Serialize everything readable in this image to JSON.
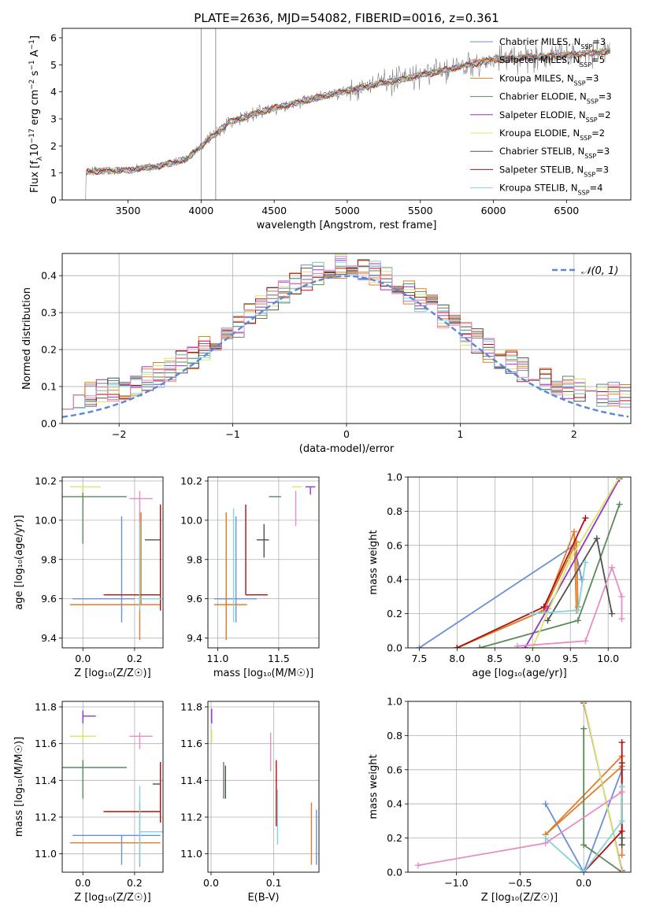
{
  "colors": {
    "Chabrier MILES": "#6a8fd8",
    "Salpeter MILES": "#e87a2a",
    "Kroupa MILES": "#d9822b",
    "Chabrier ELODIE": "#5a8a5a",
    "Salpeter ELODIE": "#9932cc",
    "Kroupa ELODIE": "#d6e86a",
    "Chabrier STELIB": "#505050",
    "Salpeter STELIB": "#b01010",
    "Kroupa STELIB": "#80d4dc",
    "pink": "#e88cc4",
    "gaussian": "#5b87d6",
    "grid": "#b0b0b0"
  },
  "chart_data": [
    {
      "id": "spectrum",
      "type": "line",
      "title": "PLATE=2636, MJD=54082, FIBERID=0016, z=0.361",
      "xlabel": "wavelength [Angstrom, rest frame]",
      "ylabel": "Flux [f",
      "ylabel_parts": [
        "Flux [f",
        "λ",
        "10",
        "−17",
        " erg cm",
        "−2",
        " s",
        "−1",
        " A",
        "−1",
        "]"
      ],
      "xlim": [
        3050,
        6940
      ],
      "ylim": [
        0,
        6.35
      ],
      "xticks": [
        3500,
        4000,
        4500,
        5000,
        5500,
        6000,
        6500
      ],
      "yticks": [
        0,
        1,
        2,
        3,
        4,
        5,
        6
      ],
      "legend_position": "top-right",
      "series": [
        {
          "name": "Chabrier MILES",
          "sub": "SSP",
          "n": "=3"
        },
        {
          "name": "Salpeter MILES",
          "sub": "SSP",
          "n": "=5"
        },
        {
          "name": "Kroupa MILES",
          "sub": "SSP",
          "n": "=3"
        },
        {
          "name": "Chabrier ELODIE",
          "sub": "SSP",
          "n": "=3"
        },
        {
          "name": "Salpeter ELODIE",
          "sub": "SSP",
          "n": "=2"
        },
        {
          "name": "Kroupa ELODIE",
          "sub": "SSP",
          "n": "=2"
        },
        {
          "name": "Chabrier STELIB",
          "sub": "SSP",
          "n": "=3"
        },
        {
          "name": "Salpeter STELIB",
          "sub": "SSP",
          "n": "=3"
        },
        {
          "name": "Kroupa STELIB",
          "sub": "SSP",
          "n": "=4"
        }
      ],
      "continuum": [
        [
          3210,
          1.05
        ],
        [
          3500,
          1.1
        ],
        [
          3700,
          1.25
        ],
        [
          3900,
          1.5
        ],
        [
          4000,
          2.0
        ],
        [
          4200,
          2.9
        ],
        [
          4500,
          3.4
        ],
        [
          5000,
          4.05
        ],
        [
          5500,
          4.6
        ],
        [
          6000,
          5.2
        ],
        [
          6500,
          5.35
        ],
        [
          6800,
          5.5
        ]
      ]
    },
    {
      "id": "residuals",
      "type": "histogram",
      "xlabel": "(data-model)/error",
      "ylabel": "Normed distribution",
      "xlim": [
        -2.5,
        2.5
      ],
      "ylim": [
        0,
        0.46
      ],
      "xticks": [
        -2,
        -1,
        0,
        1,
        2
      ],
      "yticks": [
        0.0,
        0.1,
        0.2,
        0.3,
        0.4
      ],
      "legend": "𝒩(0, 1)",
      "legend_position": "top-right",
      "bin_width": 0.1
    },
    {
      "id": "age_vs_Z",
      "type": "errorbar",
      "xlabel": "Z [log₁₀(Z/Z☉)]",
      "ylabel": "age  [log₁₀(age/yr)]",
      "xlim": [
        -0.08,
        0.31
      ],
      "ylim": [
        9.35,
        10.22
      ],
      "xticks": [
        0.0,
        0.2
      ],
      "yticks": [
        9.4,
        9.6,
        9.8,
        10.0,
        10.2
      ],
      "points": [
        {
          "series": "Chabrier MILES",
          "x": 0.15,
          "y": 9.6,
          "xerr": [
            0.19,
            0.05
          ],
          "yerr": [
            0.12,
            0.42
          ]
        },
        {
          "series": "Salpeter MILES",
          "x": 0.22,
          "y": 9.57,
          "xerr": [
            0.27,
            0.08
          ],
          "yerr": [
            0.18,
            0.47
          ]
        },
        {
          "series": "Kroupa MILES",
          "x": 0.225,
          "y": 9.57,
          "xerr": [
            0.0,
            0.0
          ],
          "yerr": [
            0.0,
            0.47
          ]
        },
        {
          "series": "Chabrier ELODIE",
          "x": 0.0,
          "y": 10.12,
          "xerr": [
            0.12,
            0.17
          ],
          "yerr": [
            0.24,
            0.04
          ]
        },
        {
          "series": "Salpeter ELODIE",
          "x": 0.0,
          "y": 10.17,
          "xerr": [
            0.0,
            0.0
          ],
          "yerr": [
            0.02,
            0.01
          ]
        },
        {
          "series": "Kroupa ELODIE",
          "x": 0.0,
          "y": 10.17,
          "xerr": [
            0.05,
            0.07
          ],
          "yerr": [
            0.03,
            0.01
          ]
        },
        {
          "series": "Chabrier STELIB",
          "x": 0.27,
          "y": 9.9,
          "xerr": [
            0.03,
            0.03
          ],
          "yerr": [
            0.0,
            0.0
          ]
        },
        {
          "series": "Salpeter STELIB",
          "x": 0.3,
          "y": 9.62,
          "xerr": [
            0.22,
            0.0
          ],
          "yerr": [
            0.08,
            0.46
          ]
        },
        {
          "series": "Kroupa STELIB",
          "x": 0.22,
          "y": 9.6,
          "xerr": [
            0.0,
            0.09
          ],
          "yerr": [
            0.06,
            0.45
          ]
        },
        {
          "series": "pink",
          "x": 0.22,
          "y": 10.11,
          "xerr": [
            0.04,
            0.05
          ],
          "yerr": [
            0.12,
            0.04
          ]
        }
      ]
    },
    {
      "id": "age_vs_mass",
      "type": "errorbar",
      "xlabel": "mass [log₁₀(M/M☉)]",
      "xlim": [
        10.92,
        11.83
      ],
      "ylim": [
        9.35,
        10.22
      ],
      "xticks": [
        11.0,
        11.5
      ],
      "yticks": [
        9.4,
        9.6,
        9.8,
        10.0,
        10.2
      ],
      "points": [
        {
          "series": "Chabrier MILES",
          "x": 11.15,
          "y": 9.6,
          "xerr": [
            0.18,
            0.17
          ],
          "yerr": [
            0.12,
            0.42
          ]
        },
        {
          "series": "Salpeter MILES",
          "x": 11.07,
          "y": 9.57,
          "xerr": [
            0.1,
            0.17
          ],
          "yerr": [
            0.18,
            0.47
          ]
        },
        {
          "series": "Kroupa MILES",
          "x": 11.07,
          "y": 9.57,
          "xerr": [
            0.0,
            0.0
          ],
          "yerr": [
            0.18,
            0.47
          ]
        },
        {
          "series": "Chabrier ELODIE",
          "x": 11.47,
          "y": 10.12,
          "xerr": [
            0.05,
            0.05
          ],
          "yerr": [
            0.0,
            0.0
          ]
        },
        {
          "series": "Salpeter ELODIE",
          "x": 11.76,
          "y": 10.17,
          "xerr": [
            0.04,
            0.04
          ],
          "yerr": [
            0.04,
            0.0
          ]
        },
        {
          "series": "Kroupa ELODIE",
          "x": 11.65,
          "y": 10.17,
          "xerr": [
            0.04,
            0.04
          ],
          "yerr": [
            0.0,
            0.0
          ]
        },
        {
          "series": "Chabrier STELIB",
          "x": 11.38,
          "y": 9.9,
          "xerr": [
            0.06,
            0.04
          ],
          "yerr": [
            0.09,
            0.08
          ]
        },
        {
          "series": "Salpeter STELIB",
          "x": 11.23,
          "y": 9.62,
          "xerr": [
            0.0,
            0.18
          ],
          "yerr": [
            0.0,
            0.46
          ]
        },
        {
          "series": "Kroupa STELIB",
          "x": 11.13,
          "y": 9.6,
          "xerr": [
            0.0,
            0.0
          ],
          "yerr": [
            0.12,
            0.46
          ]
        },
        {
          "series": "pink",
          "x": 11.64,
          "y": 10.11,
          "xerr": [
            0.0,
            0.0
          ],
          "yerr": [
            0.14,
            0.04
          ]
        }
      ]
    },
    {
      "id": "weight_vs_age",
      "type": "line",
      "xlabel": "age  [log₁₀(age/yr)]",
      "ylabel": "mass weight",
      "xlim": [
        7.35,
        10.3
      ],
      "ylim": [
        0,
        1
      ],
      "xticks": [
        7.5,
        8.0,
        8.5,
        9.0,
        9.5,
        10.0
      ],
      "yticks": [
        0.0,
        0.2,
        0.4,
        0.6,
        0.8,
        1.0
      ],
      "series": [
        {
          "name": "Chabrier MILES",
          "x": [
            7.5,
            9.55,
            9.65
          ],
          "y": [
            0.0,
            0.6,
            0.4
          ]
        },
        {
          "name": "Salpeter MILES",
          "x": [
            8.0,
            9.15,
            9.55,
            9.58
          ],
          "y": [
            0.0,
            0.22,
            0.68,
            0.22
          ]
        },
        {
          "name": "Kroupa MILES",
          "x": [
            8.0,
            9.15,
            9.58,
            9.6
          ],
          "y": [
            0.0,
            0.22,
            0.62,
            0.24
          ]
        },
        {
          "name": "Chabrier ELODIE",
          "x": [
            8.3,
            9.6,
            10.15
          ],
          "y": [
            0.0,
            0.16,
            0.84
          ]
        },
        {
          "name": "Salpeter ELODIE",
          "x": [
            8.9,
            9.2,
            10.15
          ],
          "y": [
            0.0,
            0.23,
            0.99
          ]
        },
        {
          "name": "Kroupa ELODIE",
          "x": [
            9.0,
            9.5,
            10.15
          ],
          "y": [
            0.0,
            0.52,
            1.0
          ]
        },
        {
          "name": "Chabrier STELIB",
          "x": [
            9.2,
            9.85,
            10.05
          ],
          "y": [
            0.16,
            0.64,
            0.2
          ]
        },
        {
          "name": "Salpeter STELIB",
          "x": [
            8.0,
            9.15,
            9.7
          ],
          "y": [
            0.0,
            0.24,
            0.76
          ]
        },
        {
          "name": "Kroupa STELIB",
          "x": [
            9.0,
            9.6,
            9.7
          ],
          "y": [
            0.2,
            0.22,
            0.5
          ]
        },
        {
          "name": "pink",
          "x": [
            8.8,
            9.7,
            10.05,
            10.18,
            10.18
          ],
          "y": [
            0.01,
            0.04,
            0.47,
            0.3,
            0.17
          ]
        }
      ]
    },
    {
      "id": "mass_vs_Z",
      "type": "errorbar",
      "xlabel": "Z [log₁₀(Z/Z☉)]",
      "ylabel": "mass [log₁₀(M/M☉)]",
      "xlim": [
        -0.08,
        0.31
      ],
      "ylim": [
        10.9,
        11.83
      ],
      "xticks": [
        0.0,
        0.2
      ],
      "yticks": [
        11.0,
        11.2,
        11.4,
        11.6,
        11.8
      ],
      "points": [
        {
          "series": "Chabrier MILES",
          "x": 0.15,
          "y": 11.1,
          "xerr": [
            0.19,
            0.15
          ],
          "yerr": [
            0.16,
            0.0
          ]
        },
        {
          "series": "Salpeter MILES",
          "x": 0.22,
          "y": 11.06,
          "xerr": [
            0.27,
            0.08
          ],
          "yerr": [
            0.13,
            0.22
          ]
        },
        {
          "series": "Kroupa MILES",
          "x": 0.225,
          "y": 11.06,
          "xerr": [
            0.0,
            0.0
          ],
          "yerr": [
            0.0,
            0.0
          ]
        },
        {
          "series": "Chabrier ELODIE",
          "x": 0.0,
          "y": 11.47,
          "xerr": [
            0.12,
            0.17
          ],
          "yerr": [
            0.17,
            0.04
          ]
        },
        {
          "series": "Salpeter ELODIE",
          "x": 0.0,
          "y": 11.75,
          "xerr": [
            0.0,
            0.05
          ],
          "yerr": [
            0.04,
            0.03
          ]
        },
        {
          "series": "Kroupa ELODIE",
          "x": 0.0,
          "y": 11.64,
          "xerr": [
            0.05,
            0.05
          ],
          "yerr": [
            0.03,
            0.03
          ]
        },
        {
          "series": "Chabrier STELIB",
          "x": 0.3,
          "y": 11.38,
          "xerr": [
            0.03,
            0.0
          ],
          "yerr": [
            0.0,
            0.0
          ]
        },
        {
          "series": "Salpeter STELIB",
          "x": 0.3,
          "y": 11.23,
          "xerr": [
            0.22,
            0.0
          ],
          "yerr": [
            0.06,
            0.27
          ]
        },
        {
          "series": "Kroupa STELIB",
          "x": 0.22,
          "y": 11.12,
          "xerr": [
            0.0,
            0.09
          ],
          "yerr": [
            0.18,
            0.25
          ]
        },
        {
          "series": "pink",
          "x": 0.22,
          "y": 11.64,
          "xerr": [
            0.04,
            0.05
          ],
          "yerr": [
            0.07,
            0.02
          ]
        }
      ]
    },
    {
      "id": "mass_vs_ebv",
      "type": "errorbar",
      "xlabel": "E(B-V)",
      "xlim": [
        -0.005,
        0.172
      ],
      "ylim": [
        10.9,
        11.83
      ],
      "xticks": [
        0.0,
        0.1
      ],
      "yticks": [
        11.0,
        11.2,
        11.4,
        11.6,
        11.8
      ],
      "points": [
        {
          "series": "Chabrier MILES",
          "x": 0.168,
          "y": 11.1,
          "yerr": [
            0.16,
            0.14
          ]
        },
        {
          "series": "Salpeter MILES",
          "x": 0.16,
          "y": 11.1,
          "yerr": [
            0.16,
            0.18
          ]
        },
        {
          "series": "Chabrier ELODIE",
          "x": 0.02,
          "y": 11.4,
          "yerr": [
            0.1,
            0.1
          ]
        },
        {
          "series": "Salpeter ELODIE",
          "x": 0.001,
          "y": 11.75,
          "yerr": [
            0.04,
            0.04
          ]
        },
        {
          "series": "Kroupa ELODIE",
          "x": 0.001,
          "y": 11.64,
          "yerr": [
            0.04,
            0.04
          ]
        },
        {
          "series": "Chabrier STELIB",
          "x": 0.023,
          "y": 11.39,
          "yerr": [
            0.09,
            0.09
          ]
        },
        {
          "series": "Salpeter STELIB",
          "x": 0.104,
          "y": 11.35,
          "yerr": [
            0.2,
            0.16
          ]
        },
        {
          "series": "Kroupa STELIB",
          "x": 0.106,
          "y": 11.2,
          "yerr": [
            0.15,
            0.15
          ]
        },
        {
          "series": "pink",
          "x": 0.095,
          "y": 11.55,
          "yerr": [
            0.1,
            0.11
          ]
        }
      ]
    },
    {
      "id": "weight_vs_Z",
      "type": "line",
      "xlabel": "Z [log₁₀(Z/Z☉)]",
      "ylabel": "mass weight",
      "xlim": [
        -1.38,
        0.37
      ],
      "ylim": [
        0,
        1
      ],
      "xticks": [
        -1.0,
        -0.5,
        0.0
      ],
      "yticks": [
        0.0,
        0.2,
        0.4,
        0.6,
        0.8,
        1.0
      ],
      "series": [
        {
          "name": "Chabrier MILES",
          "x": [
            -0.3,
            0.0,
            0.3
          ],
          "y": [
            0.4,
            0.0,
            0.6
          ]
        },
        {
          "name": "Salpeter MILES",
          "x": [
            -0.3,
            0.3,
            0.3
          ],
          "y": [
            0.22,
            0.68,
            0.1
          ]
        },
        {
          "name": "Kroupa MILES",
          "x": [
            -0.3,
            0.3,
            0.3
          ],
          "y": [
            0.22,
            0.62,
            0.16
          ]
        },
        {
          "name": "Chabrier ELODIE",
          "x": [
            0.0,
            0.0,
            0.3
          ],
          "y": [
            0.84,
            0.16,
            0.0
          ]
        },
        {
          "name": "Salpeter ELODIE",
          "x": [
            0.0,
            0.3
          ],
          "y": [
            0.99,
            0.01
          ]
        },
        {
          "name": "Kroupa ELODIE",
          "x": [
            0.0,
            0.3
          ],
          "y": [
            1.0,
            0.0
          ]
        },
        {
          "name": "Chabrier STELIB",
          "x": [
            0.3,
            0.3,
            0.3
          ],
          "y": [
            0.64,
            0.2,
            0.16
          ]
        },
        {
          "name": "Salpeter STELIB",
          "x": [
            0.0,
            0.3,
            0.3
          ],
          "y": [
            0.0,
            0.24,
            0.76
          ]
        },
        {
          "name": "Kroupa STELIB",
          "x": [
            -0.3,
            0.0,
            0.3,
            0.3
          ],
          "y": [
            0.2,
            0.0,
            0.3,
            0.5
          ]
        },
        {
          "name": "pink",
          "x": [
            -1.3,
            -0.3,
            0.3
          ],
          "y": [
            0.04,
            0.17,
            0.47
          ]
        }
      ]
    }
  ]
}
